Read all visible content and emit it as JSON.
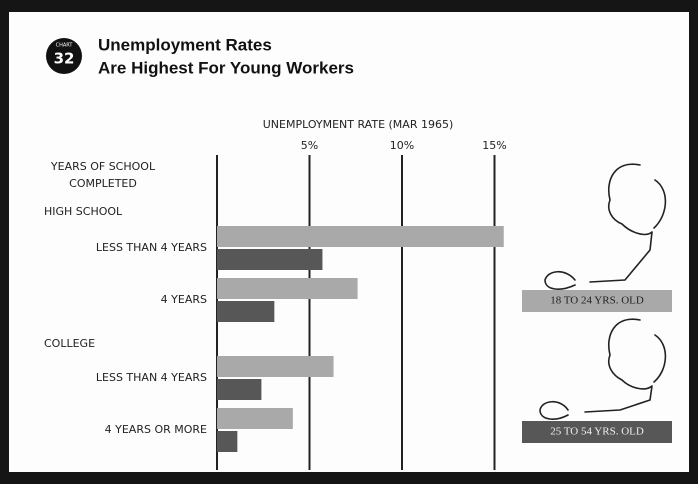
{
  "chart_data": {
    "type": "bar",
    "badge": {
      "label": "CHART",
      "number": "32"
    },
    "title": [
      "Unemployment Rates",
      "Are Highest For Young Workers"
    ],
    "x_label": "UNEMPLOYMENT RATE (MAR 1965)",
    "y_label": [
      "YEARS OF SCHOOL",
      "COMPLETED"
    ],
    "group_labels": [
      "HIGH SCHOOL",
      "COLLEGE"
    ],
    "categories": [
      "LESS THAN 4 YEARS",
      "4 YEARS",
      "LESS THAN 4 YEARS",
      "4 YEARS OR MORE"
    ],
    "series": [
      {
        "name": "18 TO 24 YRS. OLD",
        "color": "#a9a9a9",
        "values": [
          15.5,
          7.6,
          6.3,
          4.1
        ]
      },
      {
        "name": "25 TO 54 YRS. OLD",
        "color": "#575757",
        "values": [
          5.7,
          3.1,
          2.4,
          1.1
        ]
      }
    ],
    "xlim": [
      0,
      16
    ],
    "xticks": [
      {
        "value": 5,
        "label": "5%"
      },
      {
        "value": 10,
        "label": "10%"
      },
      {
        "value": 15,
        "label": "15%"
      }
    ],
    "grid": true
  }
}
